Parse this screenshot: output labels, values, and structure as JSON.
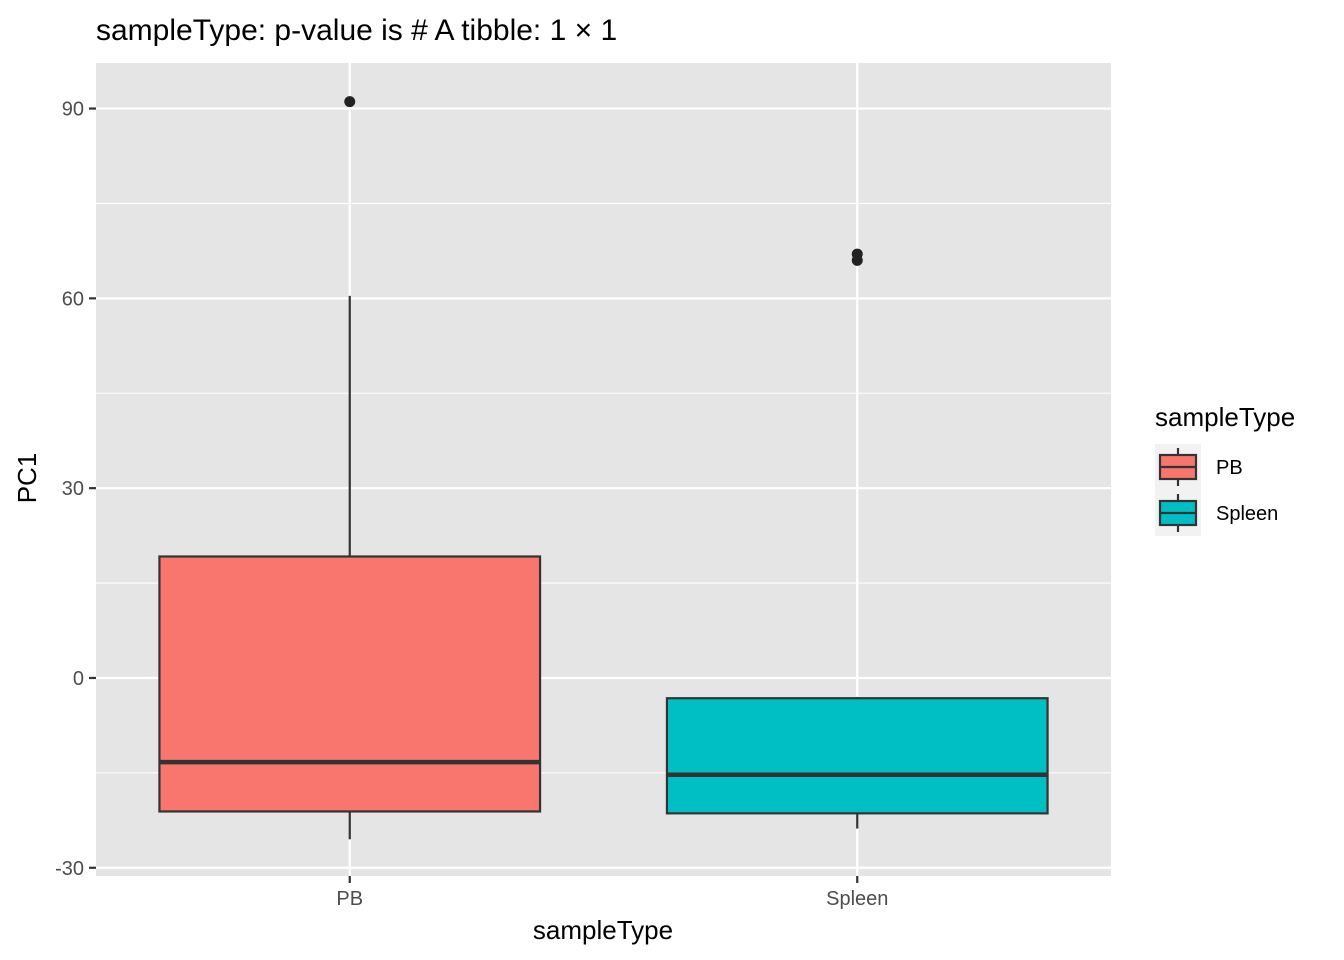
{
  "chart_data": {
    "type": "boxplot",
    "title": "sampleType: p-value is # A tibble: 1 × 1",
    "xlabel": "sampleType",
    "ylabel": "PC1",
    "categories": [
      "PB",
      "Spleen"
    ],
    "ylim": [
      -31.3,
      97.2
    ],
    "yticks": [
      -30,
      0,
      30,
      60,
      90
    ],
    "yticklabels": [
      "-30",
      "0",
      "30",
      "60",
      "90"
    ],
    "grid": true,
    "boxes": [
      {
        "category": "PB",
        "whisker_low": -25.5,
        "q1": -21.1,
        "median": -13.3,
        "q3": 19.2,
        "whisker_high": 60.4,
        "outliers": [
          91.1
        ],
        "color": "#F8766D"
      },
      {
        "category": "Spleen",
        "whisker_low": -23.8,
        "q1": -21.4,
        "median": -15.3,
        "q3": -3.2,
        "whisker_high": -3.0,
        "outliers": [
          67.0,
          66.0
        ],
        "color": "#00BFC4"
      }
    ],
    "legend": {
      "title": "sampleType",
      "position": "right",
      "entries": [
        "PB",
        "Spleen"
      ]
    },
    "colors": {
      "panel_background": "#E5E5E5",
      "grid_major": "#FFFFFF",
      "box_outline": "#333333",
      "point": "#222222"
    }
  }
}
